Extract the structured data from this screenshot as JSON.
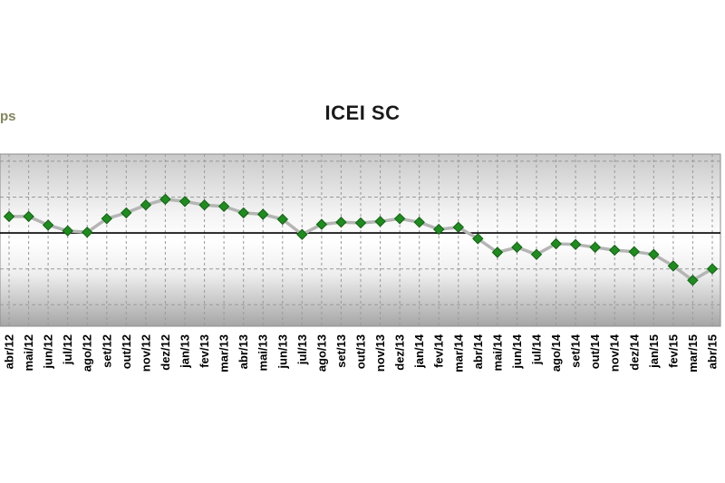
{
  "page": {
    "partial_text": "ps"
  },
  "chart_data": {
    "type": "line",
    "title": "ICEI SC",
    "xlabel": "",
    "ylabel": "",
    "legend": "none",
    "grid": "dashed",
    "marker": "diamond",
    "marker_color": "#1e8c1e",
    "marker_edge_color": "#136113",
    "line_color": "#b5b5b5",
    "reference_line": 50,
    "reference_line_color": "#000000",
    "ylim": [
      37,
      61
    ],
    "gridlines_y": [
      40,
      45,
      55,
      60
    ],
    "categories": [
      "abr/12",
      "mai/12",
      "jun/12",
      "jul/12",
      "ago/12",
      "set/12",
      "out/12",
      "nov/12",
      "dez/12",
      "jan/13",
      "fev/13",
      "mar/13",
      "abr/13",
      "mai/13",
      "jun/13",
      "jul/13",
      "ago/13",
      "set/13",
      "out/13",
      "nov/13",
      "dez/13",
      "jan/14",
      "fev/14",
      "mar/14",
      "abr/14",
      "mai/14",
      "jun/14",
      "jul/14",
      "ago/14",
      "set/14",
      "out/14",
      "nov/14",
      "dez/14",
      "jan/15",
      "fev/15",
      "mar/15",
      "abr/15"
    ],
    "series": [
      {
        "name": "ICEI SC",
        "values": [
          52.3,
          52.3,
          51.1,
          50.3,
          50.1,
          52.0,
          52.8,
          53.9,
          54.7,
          54.4,
          53.9,
          53.7,
          52.8,
          52.6,
          51.9,
          49.8,
          51.2,
          51.5,
          51.4,
          51.6,
          52.0,
          51.5,
          50.5,
          50.8,
          49.2,
          47.3,
          48.0,
          47.0,
          48.5,
          48.4,
          48.0,
          47.6,
          47.4,
          47.0,
          45.4,
          43.4,
          45.0
        ]
      }
    ]
  }
}
